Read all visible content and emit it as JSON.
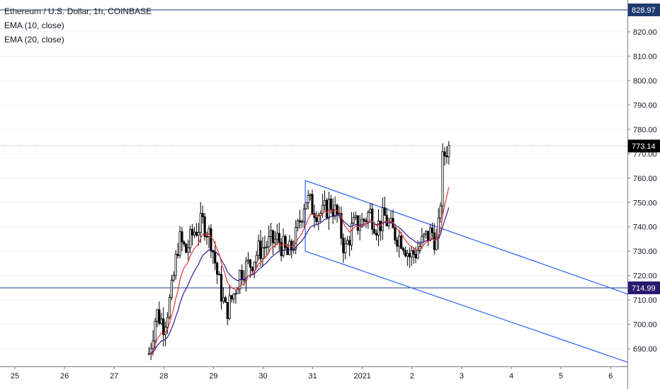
{
  "legend": {
    "title": "Ethereum / U.S. Dollar, 1h, COINBASE",
    "ema10": "EMA (10, close)",
    "ema20": "EMA (20, close)"
  },
  "colors": {
    "up_candle": "#000000",
    "down_candle": "#000000",
    "ema10": "#e53935",
    "ema20": "#311b92",
    "channel": "#2962ff",
    "hline": "#1e3a8a",
    "last_price_bg": "#000000",
    "level_714_bg": "#2a1a6e",
    "level_828_bg": "#1e3a6e"
  },
  "chart_data": {
    "type": "candlestick",
    "title": "Ethereum / U.S. Dollar, 1h, COINBASE",
    "x_ticks": [
      "25",
      "26",
      "27",
      "28",
      "29",
      "30",
      "31",
      "2021",
      "2",
      "3",
      "4",
      "5",
      "6"
    ],
    "y_ticks": [
      "690.00",
      "700.00",
      "710.00",
      "720.00",
      "730.00",
      "740.00",
      "750.00",
      "760.00",
      "770.00",
      "780.00",
      "790.00",
      "800.00",
      "810.00",
      "820.00"
    ],
    "ylim": [
      684,
      830
    ],
    "horizontal_levels": [
      {
        "value": 828.97,
        "label": "828.97"
      },
      {
        "value": 714.99,
        "label": "714.99"
      }
    ],
    "last_price": {
      "value": 773.14,
      "label": "773.14"
    },
    "channel": {
      "upper": {
        "from": {
          "day": 31,
          "price": 759
        },
        "to": {
          "day": 6.5,
          "price": 715
        }
      },
      "lower": {
        "from": {
          "day": 30.6,
          "price": 730
        },
        "to": {
          "day": 6.5,
          "price": 684
        }
      }
    },
    "candle_hint": {
      "start_day": 27.7,
      "end_day": 33.8,
      "note": "hourly candles"
    }
  }
}
